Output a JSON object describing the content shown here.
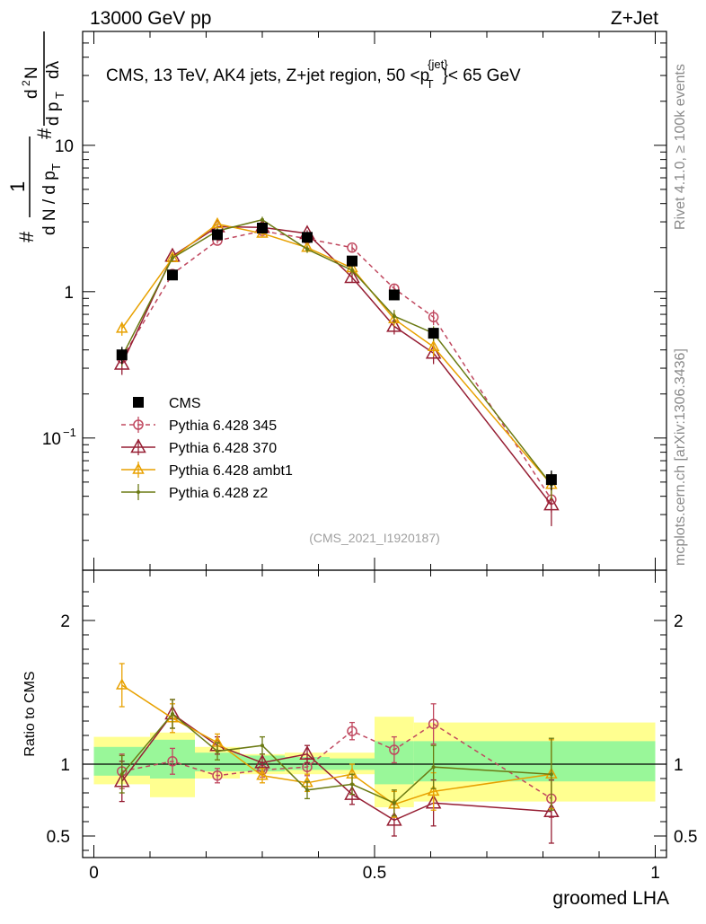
{
  "header": {
    "left": "13000 GeV pp",
    "right": "Z+Jet"
  },
  "side_text": {
    "top": "Rivet 4.1.0, ≥ 100k events",
    "bottom": "mcplots.cern.ch [arXiv:1306.3436]"
  },
  "ylabel_main": "#frac{1}{d N / d p_T} #frac{d^2N}{d p_T d λ}",
  "ylabel_ratio": "Ratio to CMS",
  "chart_data": {
    "type": "line",
    "title": "CMS, 13 TeV, AK4 jets, Z+jet region, 50 <p_T^{jet}< 65 GeV",
    "watermark": "(CMS_2021_I1920187)",
    "xlabel": "groomed LHA",
    "xlim": [
      -0.02,
      1.02
    ],
    "ylim_main": [
      0.0125,
      60
    ],
    "ylim_ratio": [
      0.35,
      2.35
    ],
    "yscale_main": "log",
    "x": [
      0.05,
      0.14,
      0.22,
      0.3,
      0.38,
      0.46,
      0.535,
      0.605,
      0.815
    ],
    "bin_edges": [
      0,
      0.1,
      0.18,
      0.26,
      0.34,
      0.42,
      0.5,
      0.57,
      0.64,
      1.0
    ],
    "x_ticks": [
      {
        "value": 0,
        "label": "0"
      },
      {
        "value": 0.5,
        "label": "0.5"
      },
      {
        "value": 1,
        "label": "1"
      }
    ],
    "y_ticks_main": [
      {
        "value": 0.1,
        "label": "10",
        "sup": "−1"
      },
      {
        "value": 1,
        "label": "1"
      },
      {
        "value": 10,
        "label": "10"
      }
    ],
    "y_ticks_ratio": [
      {
        "value": 0.5,
        "label": "0.5"
      },
      {
        "value": 1,
        "label": "1"
      },
      {
        "value": 2,
        "label": "2"
      }
    ],
    "data": {
      "name": "CMS",
      "values": [
        0.37,
        1.3,
        2.45,
        2.72,
        2.35,
        1.62,
        0.95,
        0.52,
        0.052
      ],
      "errors": [
        0.05,
        0.08,
        0.12,
        0.13,
        0.12,
        0.09,
        0.06,
        0.04,
        0.008
      ]
    },
    "ratio_band_stat": [
      [
        0.92,
        1.12
      ],
      [
        0.9,
        1.17
      ],
      [
        0.95,
        1.08
      ],
      [
        0.95,
        1.06
      ],
      [
        0.96,
        1.05
      ],
      [
        0.96,
        1.04
      ],
      [
        0.86,
        1.16
      ],
      [
        0.88,
        1.16
      ],
      [
        0.88,
        1.16
      ]
    ],
    "ratio_band_total": [
      [
        0.86,
        1.19
      ],
      [
        0.77,
        1.22
      ],
      [
        0.9,
        1.12
      ],
      [
        0.93,
        1.07
      ],
      [
        0.93,
        1.08
      ],
      [
        0.93,
        1.08
      ],
      [
        0.7,
        1.33
      ],
      [
        0.74,
        1.29
      ],
      [
        0.74,
        1.29
      ]
    ],
    "series": [
      {
        "name": "Pythia 6.428 345",
        "color": "#c0485f",
        "marker": "circle",
        "dashed": true,
        "values": [
          0.35,
          1.32,
          2.23,
          2.6,
          2.3,
          2.0,
          1.05,
          0.67,
          0.038
        ],
        "errors": [
          0.04,
          0.07,
          0.1,
          0.12,
          0.12,
          0.11,
          0.08,
          0.08,
          0.007
        ],
        "ratio": [
          0.95,
          1.02,
          0.92,
          0.96,
          0.98,
          1.23,
          1.1,
          1.28,
          0.76
        ],
        "ratio_err": [
          0.12,
          0.09,
          0.05,
          0.05,
          0.06,
          0.06,
          0.09,
          0.14,
          0.13
        ]
      },
      {
        "name": "Pythia 6.428 370",
        "color": "#961e33",
        "marker": "triangle",
        "dashed": false,
        "values": [
          0.32,
          1.75,
          2.78,
          2.75,
          2.5,
          1.25,
          0.58,
          0.38,
          0.035
        ],
        "errors": [
          0.05,
          0.1,
          0.13,
          0.13,
          0.13,
          0.09,
          0.07,
          0.06,
          0.01
        ],
        "ratio": [
          0.88,
          1.35,
          1.13,
          1.01,
          1.07,
          0.79,
          0.61,
          0.73,
          0.67
        ],
        "ratio_err": [
          0.14,
          0.1,
          0.06,
          0.06,
          0.06,
          0.07,
          0.11,
          0.16,
          0.22
        ]
      },
      {
        "name": "Pythia 6.428 ambt1",
        "color": "#e8a100",
        "marker": "triangle-small",
        "dashed": false,
        "values": [
          0.56,
          1.7,
          2.9,
          2.5,
          2.0,
          1.45,
          0.65,
          0.42,
          0.048
        ],
        "errors": [
          0.06,
          0.1,
          0.14,
          0.12,
          0.11,
          0.1,
          0.07,
          0.06,
          0.01
        ],
        "ratio": [
          1.55,
          1.32,
          1.15,
          0.92,
          0.87,
          0.93,
          0.72,
          0.81,
          0.93
        ],
        "ratio_err": [
          0.15,
          0.1,
          0.06,
          0.05,
          0.06,
          0.07,
          0.09,
          0.13,
          0.24
        ]
      },
      {
        "name": "Pythia 6.428 z2",
        "color": "#6b7a13",
        "marker": "dot",
        "dashed": false,
        "values": [
          0.36,
          1.7,
          2.6,
          3.1,
          1.95,
          1.4,
          0.68,
          0.52,
          0.048
        ],
        "errors": [
          0.05,
          0.1,
          0.13,
          0.15,
          0.11,
          0.1,
          0.07,
          0.06,
          0.01
        ],
        "ratio": [
          0.93,
          1.35,
          1.09,
          1.13,
          0.82,
          0.86,
          0.73,
          0.98,
          0.93
        ],
        "ratio_err": [
          0.13,
          0.1,
          0.06,
          0.06,
          0.06,
          0.07,
          0.09,
          0.15,
          0.25
        ]
      }
    ]
  }
}
